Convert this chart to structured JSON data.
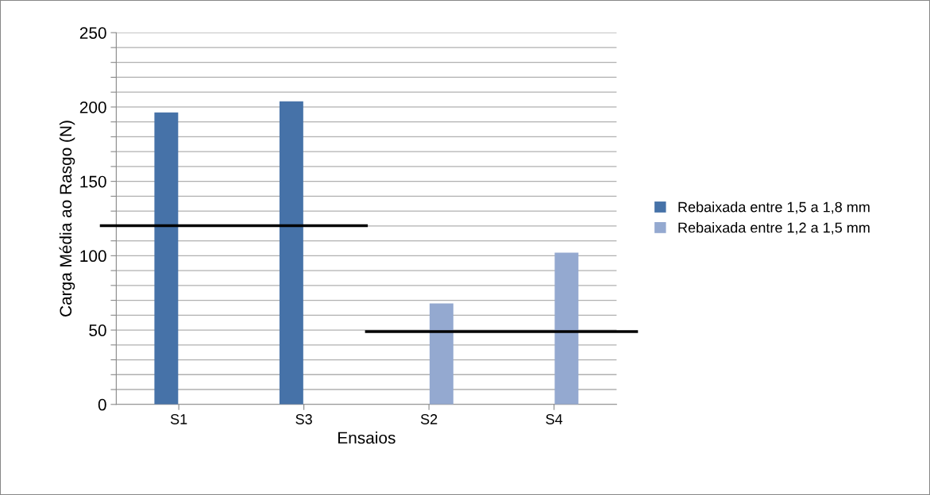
{
  "chart_data": {
    "type": "bar",
    "xlabel": "Ensaios",
    "ylabel": "Carga Média ao Rasgo (N)",
    "categories": [
      "S1",
      "S3",
      "S2",
      "S4"
    ],
    "series": [
      {
        "name": "Rebaixada entre 1,5 a 1,8 mm",
        "color": "#4672a8",
        "values": [
          196.4,
          203.8,
          null,
          null
        ]
      },
      {
        "name": "Rebaixada entre 1,2 a 1,5 mm",
        "color": "#94a9d0",
        "values": [
          null,
          null,
          67.9,
          102.1
        ]
      }
    ],
    "ylim": [
      0,
      250
    ],
    "yticks": [
      0,
      {
        "value": 10,
        "label": null
      },
      {
        "value": 20,
        "label": null
      },
      {
        "value": 30,
        "label": null
      },
      {
        "value": 40,
        "label": null
      },
      50,
      {
        "value": 60,
        "label": null
      },
      {
        "value": 70,
        "label": null
      },
      {
        "value": 80,
        "label": null
      },
      {
        "value": 90,
        "label": null
      },
      100,
      {
        "value": 110,
        "label": null
      },
      {
        "value": 120,
        "label": null
      },
      {
        "value": 130,
        "label": null
      },
      {
        "value": 140,
        "label": null
      },
      150,
      {
        "value": 160,
        "label": null
      },
      {
        "value": 170,
        "label": null
      },
      {
        "value": 180,
        "label": null
      },
      {
        "value": 190,
        "label": null
      },
      200,
      {
        "value": 210,
        "label": null
      },
      {
        "value": 220,
        "label": null
      },
      {
        "value": 230,
        "label": null
      },
      {
        "value": 240,
        "label": null
      },
      250
    ],
    "ref_lines": [
      {
        "axis": "y",
        "value": 120.2,
        "color": "#000000"
      },
      {
        "axis": "y",
        "value": 49.0,
        "color": "#000000"
      }
    ],
    "grid": "y",
    "legend": "right"
  }
}
